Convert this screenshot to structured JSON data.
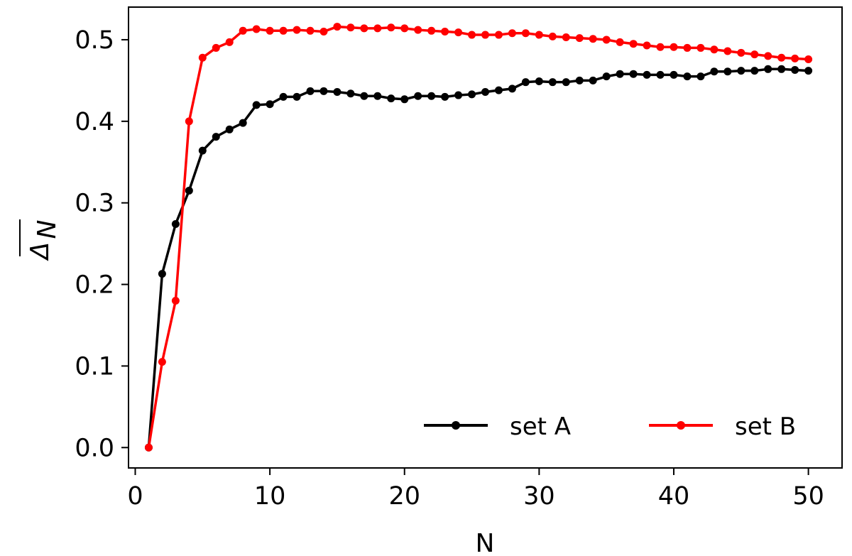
{
  "chart_data": {
    "type": "line",
    "title": "",
    "xlabel": "N",
    "ylabel": "Δ",
    "ylabel_subscript": "N",
    "xlim": [
      -0.5,
      52.5
    ],
    "ylim": [
      -0.025,
      0.54
    ],
    "xticks": [
      0,
      10,
      20,
      30,
      40,
      50
    ],
    "xtick_labels": [
      "0",
      "10",
      "20",
      "30",
      "40",
      "50"
    ],
    "yticks": [
      0.0,
      0.1,
      0.2,
      0.3,
      0.4,
      0.5
    ],
    "ytick_labels": [
      "0.0",
      "0.1",
      "0.2",
      "0.3",
      "0.4",
      "0.5"
    ],
    "grid": false,
    "legend_position": "bottom-right",
    "legend_columns": 2,
    "series": [
      {
        "name": "set A",
        "color": "#000000",
        "marker": "circle",
        "x": [
          1,
          2,
          3,
          4,
          5,
          6,
          7,
          8,
          9,
          10,
          11,
          12,
          13,
          14,
          15,
          16,
          17,
          18,
          19,
          20,
          21,
          22,
          23,
          24,
          25,
          26,
          27,
          28,
          29,
          30,
          31,
          32,
          33,
          34,
          35,
          36,
          37,
          38,
          39,
          40,
          41,
          42,
          43,
          44,
          45,
          46,
          47,
          48,
          49,
          50
        ],
        "values": [
          0.0,
          0.213,
          0.274,
          0.315,
          0.364,
          0.381,
          0.39,
          0.398,
          0.42,
          0.421,
          0.43,
          0.43,
          0.437,
          0.437,
          0.436,
          0.434,
          0.431,
          0.431,
          0.428,
          0.427,
          0.431,
          0.431,
          0.43,
          0.432,
          0.433,
          0.436,
          0.438,
          0.44,
          0.448,
          0.449,
          0.448,
          0.448,
          0.45,
          0.45,
          0.455,
          0.458,
          0.458,
          0.457,
          0.457,
          0.457,
          0.455,
          0.455,
          0.461,
          0.461,
          0.462,
          0.462,
          0.464,
          0.464,
          0.463,
          0.462
        ]
      },
      {
        "name": "set B",
        "color": "#ff0000",
        "marker": "circle",
        "x": [
          1,
          2,
          3,
          4,
          5,
          6,
          7,
          8,
          9,
          10,
          11,
          12,
          13,
          14,
          15,
          16,
          17,
          18,
          19,
          20,
          21,
          22,
          23,
          24,
          25,
          26,
          27,
          28,
          29,
          30,
          31,
          32,
          33,
          34,
          35,
          36,
          37,
          38,
          39,
          40,
          41,
          42,
          43,
          44,
          45,
          46,
          47,
          48,
          49,
          50
        ],
        "values": [
          0.0,
          0.105,
          0.18,
          0.4,
          0.478,
          0.49,
          0.497,
          0.511,
          0.513,
          0.511,
          0.511,
          0.512,
          0.511,
          0.51,
          0.516,
          0.515,
          0.514,
          0.514,
          0.515,
          0.514,
          0.512,
          0.511,
          0.51,
          0.509,
          0.506,
          0.506,
          0.506,
          0.508,
          0.508,
          0.506,
          0.504,
          0.503,
          0.502,
          0.501,
          0.5,
          0.497,
          0.495,
          0.493,
          0.491,
          0.491,
          0.49,
          0.49,
          0.488,
          0.486,
          0.484,
          0.482,
          0.48,
          0.478,
          0.477,
          0.476
        ]
      }
    ]
  }
}
